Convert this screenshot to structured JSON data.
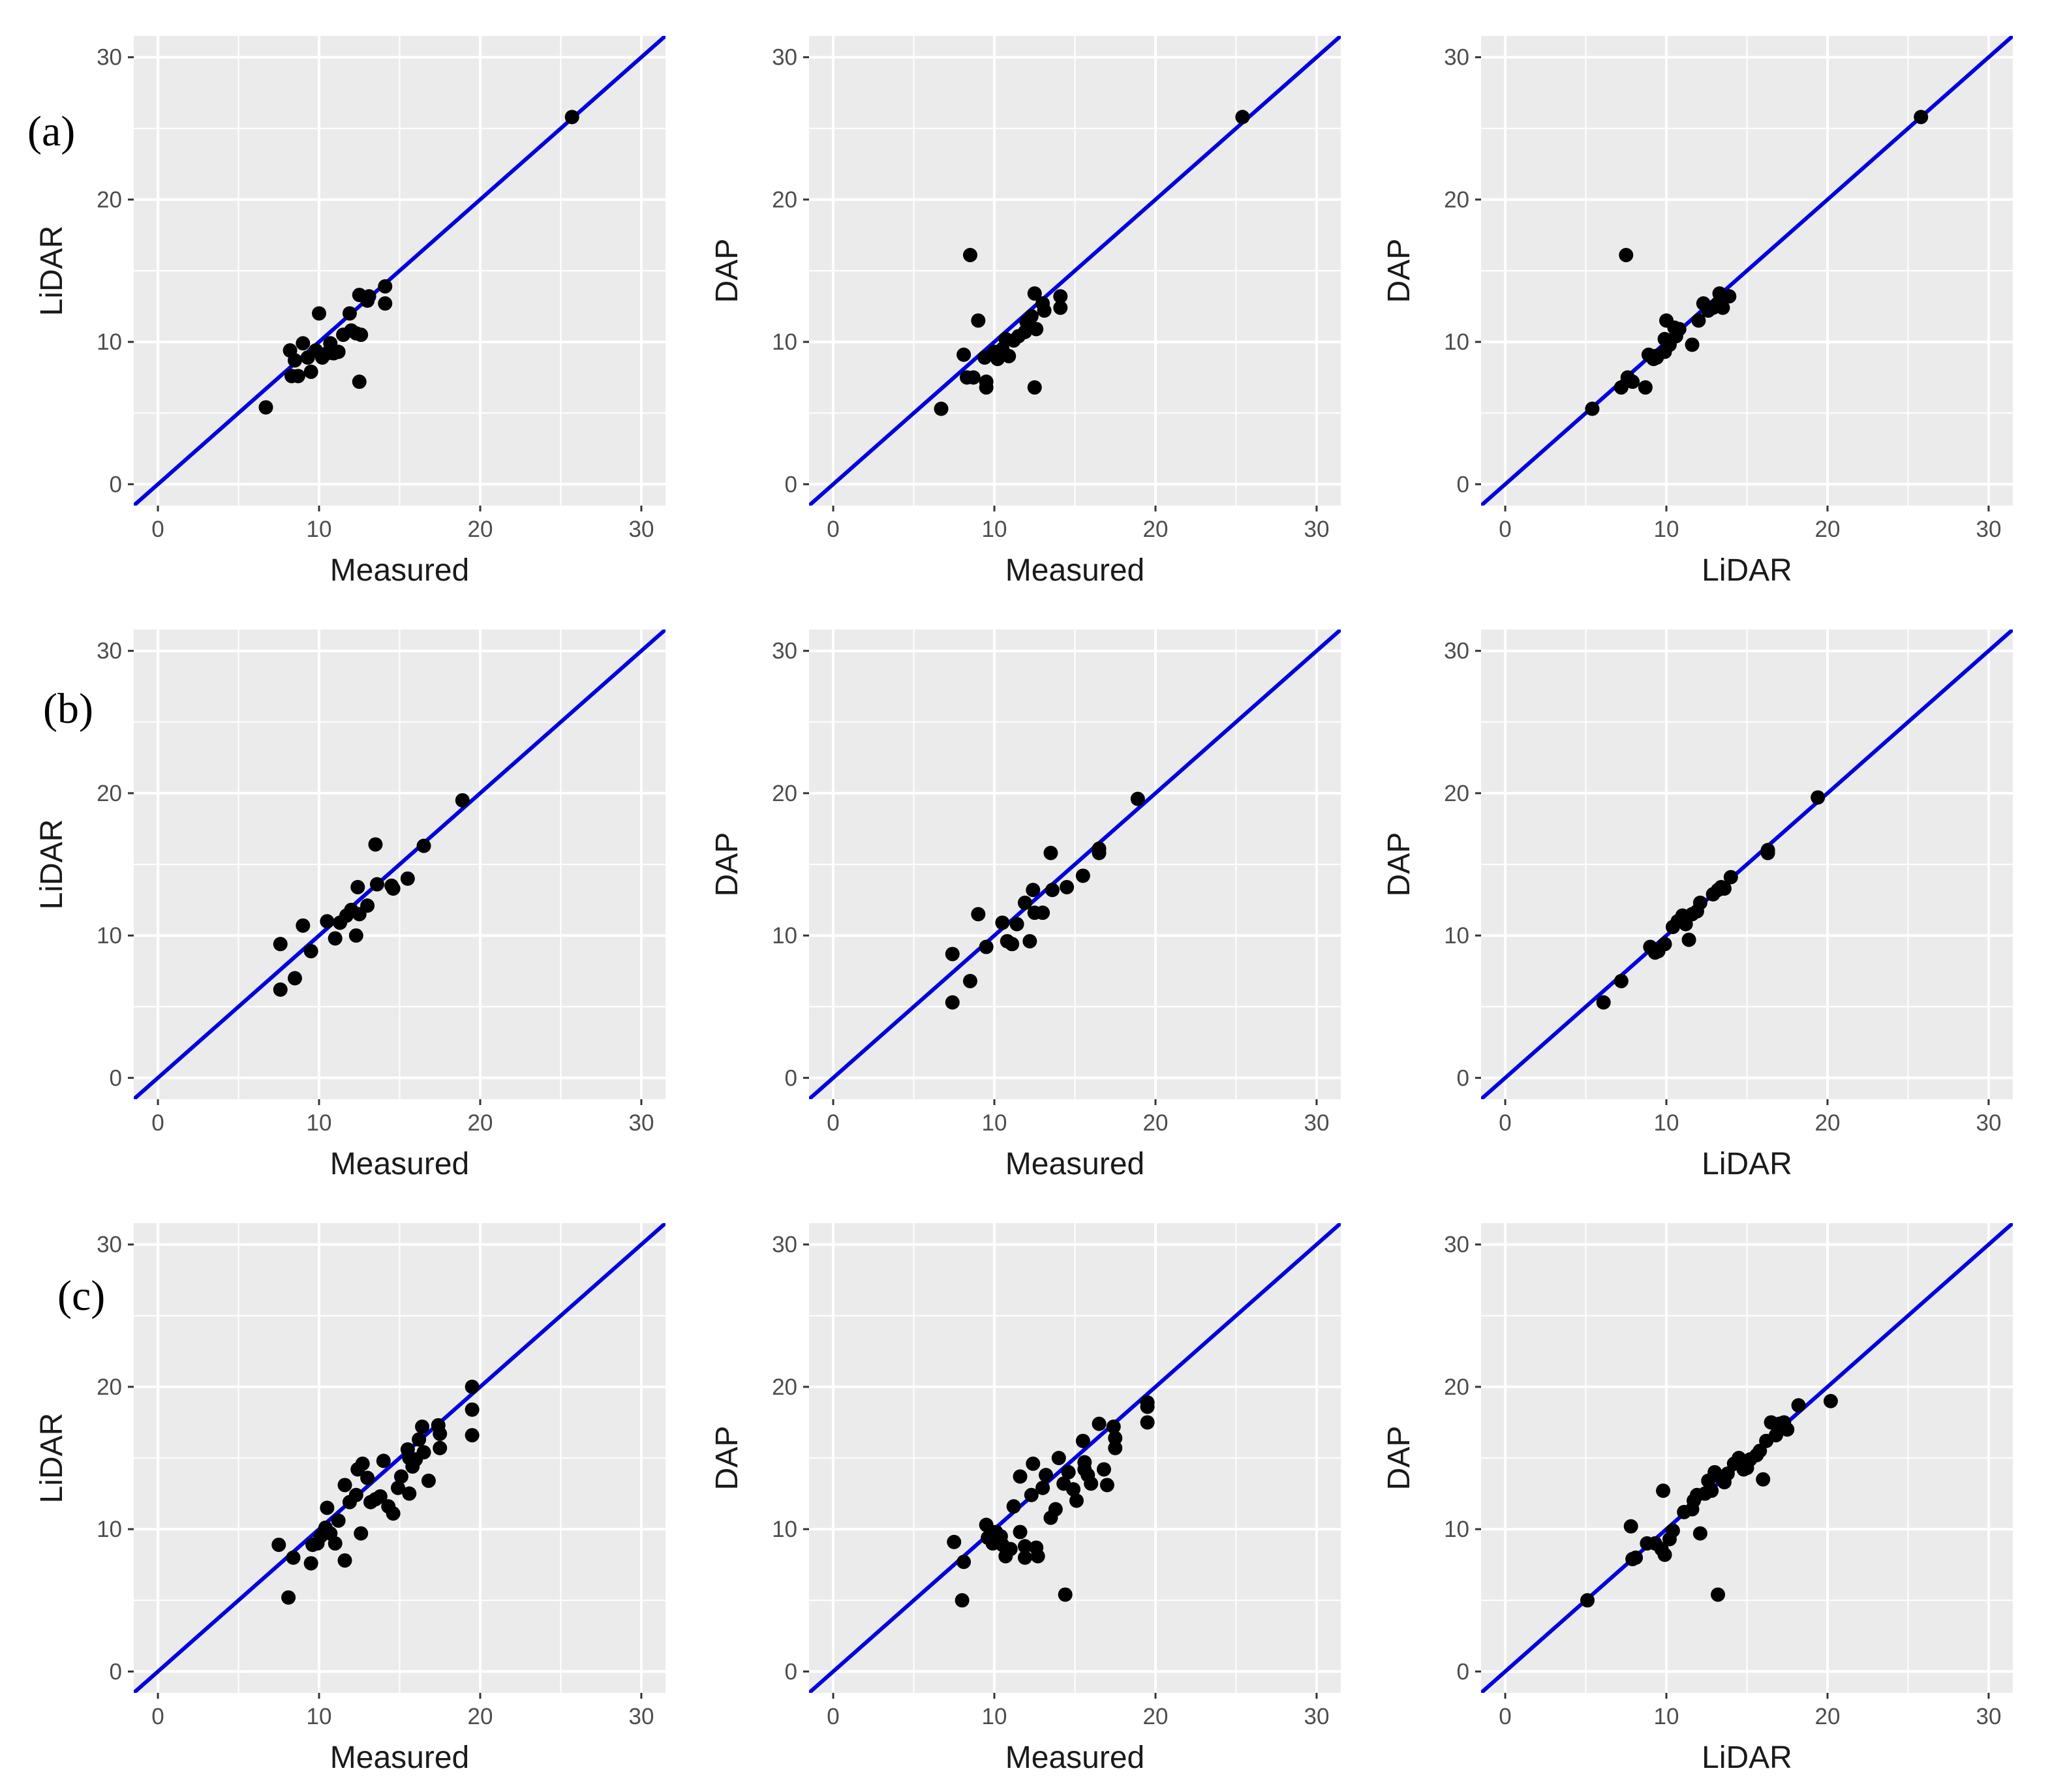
{
  "figure": {
    "row_labels": [
      "(a)",
      "(b)",
      "(c)"
    ],
    "colors": {
      "panel_bg": "#ebebeb",
      "grid": "#ffffff",
      "point": "#000000",
      "fit_line": "#0000dd"
    }
  },
  "chart_data": [
    {
      "id": "a-measured-lidar",
      "type": "scatter",
      "row": 0,
      "col": 0,
      "xlabel": "Measured",
      "ylabel": "LiDAR",
      "xlim": [
        -1.5,
        31.5
      ],
      "ylim": [
        -1.5,
        31.5
      ],
      "xticks": [
        0,
        10,
        20,
        30
      ],
      "yticks": [
        0,
        10,
        20,
        30
      ],
      "fit_line": {
        "slope": 1.0,
        "intercept": 0.0
      },
      "points": [
        [
          6.7,
          5.4
        ],
        [
          8.2,
          9.4
        ],
        [
          8.3,
          7.6
        ],
        [
          8.5,
          8.7
        ],
        [
          8.7,
          7.6
        ],
        [
          9.0,
          9.9
        ],
        [
          9.3,
          8.9
        ],
        [
          9.5,
          7.9
        ],
        [
          9.8,
          9.4
        ],
        [
          10.0,
          12.0
        ],
        [
          10.2,
          8.9
        ],
        [
          10.5,
          9.2
        ],
        [
          10.7,
          9.9
        ],
        [
          10.9,
          9.2
        ],
        [
          11.2,
          9.3
        ],
        [
          11.5,
          10.5
        ],
        [
          11.9,
          12.0
        ],
        [
          12.0,
          10.8
        ],
        [
          12.3,
          10.6
        ],
        [
          12.5,
          13.3
        ],
        [
          12.5,
          7.2
        ],
        [
          12.6,
          10.5
        ],
        [
          13.0,
          12.9
        ],
        [
          13.1,
          13.2
        ],
        [
          14.1,
          13.9
        ],
        [
          14.1,
          12.7
        ],
        [
          25.7,
          25.8
        ]
      ]
    },
    {
      "id": "a-measured-dap",
      "type": "scatter",
      "row": 0,
      "col": 1,
      "xlabel": "Measured",
      "ylabel": "DAP",
      "xlim": [
        -1.5,
        31.5
      ],
      "ylim": [
        -1.5,
        31.5
      ],
      "xticks": [
        0,
        10,
        20,
        30
      ],
      "yticks": [
        0,
        10,
        20,
        30
      ],
      "fit_line": {
        "slope": 1.0,
        "intercept": 0.0
      },
      "points": [
        [
          6.7,
          5.3
        ],
        [
          8.1,
          9.1
        ],
        [
          8.3,
          7.5
        ],
        [
          8.5,
          16.1
        ],
        [
          8.7,
          7.5
        ],
        [
          9.0,
          11.5
        ],
        [
          9.4,
          8.9
        ],
        [
          9.5,
          7.2
        ],
        [
          9.5,
          6.8
        ],
        [
          10.0,
          9.3
        ],
        [
          10.2,
          8.8
        ],
        [
          10.5,
          9.5
        ],
        [
          10.7,
          10.2
        ],
        [
          10.9,
          9.0
        ],
        [
          11.2,
          10.1
        ],
        [
          11.5,
          10.4
        ],
        [
          11.9,
          10.7
        ],
        [
          12.0,
          11.4
        ],
        [
          12.3,
          11.8
        ],
        [
          12.5,
          13.4
        ],
        [
          12.5,
          6.8
        ],
        [
          12.6,
          10.9
        ],
        [
          13.0,
          12.7
        ],
        [
          13.1,
          12.2
        ],
        [
          14.1,
          13.2
        ],
        [
          14.1,
          12.4
        ],
        [
          25.4,
          25.8
        ]
      ]
    },
    {
      "id": "a-lidar-dap",
      "type": "scatter",
      "row": 0,
      "col": 2,
      "xlabel": "LiDAR",
      "ylabel": "DAP",
      "xlim": [
        -1.5,
        31.5
      ],
      "ylim": [
        -1.5,
        31.5
      ],
      "xticks": [
        0,
        10,
        20,
        30
      ],
      "yticks": [
        0,
        10,
        20,
        30
      ],
      "fit_line": {
        "slope": 1.0,
        "intercept": 0.0
      },
      "points": [
        [
          5.4,
          5.3
        ],
        [
          7.2,
          6.8
        ],
        [
          7.5,
          16.1
        ],
        [
          7.6,
          7.5
        ],
        [
          7.9,
          7.2
        ],
        [
          8.7,
          6.8
        ],
        [
          8.9,
          9.1
        ],
        [
          9.2,
          8.8
        ],
        [
          9.3,
          9.0
        ],
        [
          9.4,
          8.9
        ],
        [
          9.9,
          9.3
        ],
        [
          9.9,
          10.2
        ],
        [
          10.0,
          11.5
        ],
        [
          10.2,
          9.8
        ],
        [
          10.5,
          11.0
        ],
        [
          10.6,
          10.4
        ],
        [
          10.8,
          10.9
        ],
        [
          11.6,
          9.8
        ],
        [
          12.0,
          11.5
        ],
        [
          12.3,
          12.7
        ],
        [
          12.6,
          12.2
        ],
        [
          12.9,
          12.4
        ],
        [
          13.2,
          12.7
        ],
        [
          13.3,
          13.4
        ],
        [
          13.5,
          12.4
        ],
        [
          13.9,
          13.2
        ],
        [
          25.8,
          25.8
        ]
      ]
    },
    {
      "id": "b-measured-lidar",
      "type": "scatter",
      "row": 1,
      "col": 0,
      "xlabel": "Measured",
      "ylabel": "LiDAR",
      "xlim": [
        -1.5,
        31.5
      ],
      "ylim": [
        -1.5,
        31.5
      ],
      "xticks": [
        0,
        10,
        20,
        30
      ],
      "yticks": [
        0,
        10,
        20,
        30
      ],
      "fit_line": {
        "slope": 1.0,
        "intercept": 0.0
      },
      "points": [
        [
          7.6,
          9.4
        ],
        [
          7.6,
          6.2
        ],
        [
          8.5,
          7.0
        ],
        [
          9.0,
          10.7
        ],
        [
          9.5,
          8.9
        ],
        [
          10.5,
          11.0
        ],
        [
          11.0,
          9.8
        ],
        [
          11.3,
          10.9
        ],
        [
          11.7,
          11.4
        ],
        [
          12.0,
          11.8
        ],
        [
          12.3,
          10.0
        ],
        [
          12.4,
          13.4
        ],
        [
          12.5,
          11.5
        ],
        [
          13.0,
          12.1
        ],
        [
          13.5,
          16.4
        ],
        [
          13.6,
          13.6
        ],
        [
          14.5,
          13.5
        ],
        [
          14.6,
          13.3
        ],
        [
          15.5,
          14.0
        ],
        [
          16.5,
          16.3
        ],
        [
          18.9,
          19.5
        ]
      ]
    },
    {
      "id": "b-measured-dap",
      "type": "scatter",
      "row": 1,
      "col": 1,
      "xlabel": "Measured",
      "ylabel": "DAP",
      "xlim": [
        -1.5,
        31.5
      ],
      "ylim": [
        -1.5,
        31.5
      ],
      "xticks": [
        0,
        10,
        20,
        30
      ],
      "yticks": [
        0,
        10,
        20,
        30
      ],
      "fit_line": {
        "slope": 1.0,
        "intercept": 0.0
      },
      "points": [
        [
          7.4,
          8.7
        ],
        [
          7.4,
          5.3
        ],
        [
          8.5,
          6.8
        ],
        [
          9.0,
          11.5
        ],
        [
          9.5,
          9.2
        ],
        [
          10.5,
          10.9
        ],
        [
          10.8,
          9.6
        ],
        [
          11.1,
          9.4
        ],
        [
          11.4,
          10.8
        ],
        [
          11.9,
          12.3
        ],
        [
          12.2,
          9.6
        ],
        [
          12.4,
          13.2
        ],
        [
          12.5,
          11.6
        ],
        [
          13.0,
          11.6
        ],
        [
          13.5,
          15.8
        ],
        [
          13.6,
          13.2
        ],
        [
          14.5,
          13.4
        ],
        [
          15.5,
          14.2
        ],
        [
          16.5,
          16.1
        ],
        [
          16.5,
          15.8
        ],
        [
          18.9,
          19.6
        ]
      ]
    },
    {
      "id": "b-lidar-dap",
      "type": "scatter",
      "row": 1,
      "col": 2,
      "xlabel": "LiDAR",
      "ylabel": "DAP",
      "xlim": [
        -1.5,
        31.5
      ],
      "ylim": [
        -1.5,
        31.5
      ],
      "xticks": [
        0,
        10,
        20,
        30
      ],
      "yticks": [
        0,
        10,
        20,
        30
      ],
      "fit_line": {
        "slope": 1.0,
        "intercept": 0.0
      },
      "points": [
        [
          6.1,
          5.3
        ],
        [
          7.2,
          6.8
        ],
        [
          9.0,
          9.2
        ],
        [
          9.3,
          8.8
        ],
        [
          9.5,
          8.9
        ],
        [
          9.9,
          9.4
        ],
        [
          10.4,
          10.6
        ],
        [
          10.7,
          11.0
        ],
        [
          11.0,
          11.4
        ],
        [
          11.2,
          10.8
        ],
        [
          11.4,
          9.7
        ],
        [
          11.6,
          11.5
        ],
        [
          11.9,
          11.7
        ],
        [
          12.1,
          12.3
        ],
        [
          12.9,
          12.9
        ],
        [
          13.2,
          13.2
        ],
        [
          13.4,
          13.4
        ],
        [
          13.6,
          13.3
        ],
        [
          14.0,
          14.1
        ],
        [
          16.3,
          16.0
        ],
        [
          16.3,
          15.8
        ],
        [
          19.4,
          19.7
        ]
      ]
    },
    {
      "id": "c-measured-lidar",
      "type": "scatter",
      "row": 2,
      "col": 0,
      "xlabel": "Measured",
      "ylabel": "LiDAR",
      "xlim": [
        -1.5,
        31.5
      ],
      "ylim": [
        -1.5,
        31.5
      ],
      "xticks": [
        0,
        10,
        20,
        30
      ],
      "yticks": [
        0,
        10,
        20,
        30
      ],
      "fit_line": {
        "slope": 1.0,
        "intercept": 0.0
      },
      "points": [
        [
          7.5,
          8.9
        ],
        [
          8.1,
          5.2
        ],
        [
          8.4,
          8.0
        ],
        [
          9.5,
          7.6
        ],
        [
          9.6,
          8.9
        ],
        [
          9.9,
          9.0
        ],
        [
          10.1,
          9.5
        ],
        [
          10.4,
          10.1
        ],
        [
          10.5,
          11.5
        ],
        [
          10.7,
          9.7
        ],
        [
          11.0,
          9.0
        ],
        [
          11.2,
          10.6
        ],
        [
          11.6,
          7.8
        ],
        [
          11.6,
          13.1
        ],
        [
          11.9,
          11.9
        ],
        [
          12.3,
          12.4
        ],
        [
          12.4,
          14.2
        ],
        [
          12.6,
          9.7
        ],
        [
          12.7,
          14.6
        ],
        [
          13.0,
          13.6
        ],
        [
          13.2,
          11.9
        ],
        [
          13.5,
          12.1
        ],
        [
          13.8,
          12.3
        ],
        [
          14.0,
          14.8
        ],
        [
          14.3,
          11.6
        ],
        [
          14.6,
          11.1
        ],
        [
          14.9,
          12.9
        ],
        [
          15.1,
          13.7
        ],
        [
          15.5,
          15.6
        ],
        [
          15.6,
          12.5
        ],
        [
          15.6,
          15.0
        ],
        [
          15.8,
          14.4
        ],
        [
          16.0,
          14.9
        ],
        [
          16.2,
          16.3
        ],
        [
          16.4,
          17.2
        ],
        [
          16.5,
          15.4
        ],
        [
          16.8,
          13.4
        ],
        [
          17.4,
          17.3
        ],
        [
          17.5,
          16.7
        ],
        [
          17.5,
          15.7
        ],
        [
          19.5,
          20.0
        ],
        [
          19.5,
          18.4
        ],
        [
          19.5,
          16.6
        ]
      ]
    },
    {
      "id": "c-measured-dap",
      "type": "scatter",
      "row": 2,
      "col": 1,
      "xlabel": "Measured",
      "ylabel": "DAP",
      "xlim": [
        -1.5,
        31.5
      ],
      "ylim": [
        -1.5,
        31.5
      ],
      "xticks": [
        0,
        10,
        20,
        30
      ],
      "yticks": [
        0,
        10,
        20,
        30
      ],
      "fit_line": {
        "slope": 1.0,
        "intercept": 0.0
      },
      "points": [
        [
          7.5,
          9.1
        ],
        [
          8.0,
          5.0
        ],
        [
          8.1,
          7.7
        ],
        [
          9.5,
          10.3
        ],
        [
          9.6,
          9.4
        ],
        [
          9.9,
          9.0
        ],
        [
          10.1,
          9.8
        ],
        [
          10.4,
          9.5
        ],
        [
          10.5,
          8.9
        ],
        [
          10.7,
          8.1
        ],
        [
          11.0,
          8.6
        ],
        [
          11.2,
          11.6
        ],
        [
          11.6,
          9.8
        ],
        [
          11.6,
          13.7
        ],
        [
          11.9,
          8.8
        ],
        [
          11.9,
          8.0
        ],
        [
          12.3,
          12.4
        ],
        [
          12.4,
          14.6
        ],
        [
          12.6,
          8.7
        ],
        [
          12.7,
          8.1
        ],
        [
          13.0,
          12.9
        ],
        [
          13.2,
          13.8
        ],
        [
          13.5,
          10.8
        ],
        [
          13.8,
          11.4
        ],
        [
          14.0,
          15.0
        ],
        [
          14.3,
          13.2
        ],
        [
          14.4,
          5.4
        ],
        [
          14.6,
          14.0
        ],
        [
          14.9,
          12.8
        ],
        [
          15.1,
          12.0
        ],
        [
          15.5,
          16.2
        ],
        [
          15.6,
          14.7
        ],
        [
          15.6,
          14.2
        ],
        [
          15.8,
          13.8
        ],
        [
          16.0,
          13.2
        ],
        [
          16.5,
          17.4
        ],
        [
          16.8,
          14.2
        ],
        [
          17.0,
          13.1
        ],
        [
          17.4,
          17.2
        ],
        [
          17.5,
          16.4
        ],
        [
          17.5,
          15.7
        ],
        [
          19.5,
          18.9
        ],
        [
          19.5,
          18.6
        ],
        [
          19.5,
          17.5
        ]
      ]
    },
    {
      "id": "c-lidar-dap",
      "type": "scatter",
      "row": 2,
      "col": 2,
      "xlabel": "LiDAR",
      "ylabel": "DAP",
      "xlim": [
        -1.5,
        31.5
      ],
      "ylim": [
        -1.5,
        31.5
      ],
      "xticks": [
        0,
        10,
        20,
        30
      ],
      "yticks": [
        0,
        10,
        20,
        30
      ],
      "fit_line": {
        "slope": 1.0,
        "intercept": 0.0
      },
      "points": [
        [
          5.1,
          5.0
        ],
        [
          7.8,
          10.2
        ],
        [
          7.9,
          7.9
        ],
        [
          8.1,
          8.0
        ],
        [
          8.8,
          9.0
        ],
        [
          9.3,
          9.0
        ],
        [
          9.7,
          8.6
        ],
        [
          9.8,
          12.7
        ],
        [
          9.9,
          8.2
        ],
        [
          10.2,
          9.3
        ],
        [
          10.4,
          9.9
        ],
        [
          11.1,
          11.2
        ],
        [
          11.6,
          11.4
        ],
        [
          11.7,
          12.0
        ],
        [
          11.9,
          12.4
        ],
        [
          12.1,
          9.7
        ],
        [
          12.4,
          12.5
        ],
        [
          12.6,
          13.4
        ],
        [
          12.8,
          12.7
        ],
        [
          13.0,
          14.0
        ],
        [
          13.2,
          5.4
        ],
        [
          13.4,
          13.6
        ],
        [
          13.6,
          13.3
        ],
        [
          13.8,
          13.9
        ],
        [
          14.2,
          14.6
        ],
        [
          14.5,
          15.0
        ],
        [
          14.8,
          14.2
        ],
        [
          15.0,
          14.3
        ],
        [
          15.2,
          14.9
        ],
        [
          15.6,
          15.2
        ],
        [
          15.8,
          15.5
        ],
        [
          16.0,
          13.5
        ],
        [
          16.2,
          16.2
        ],
        [
          16.5,
          17.5
        ],
        [
          16.8,
          16.6
        ],
        [
          17.0,
          17.4
        ],
        [
          17.3,
          17.5
        ],
        [
          17.5,
          17.0
        ],
        [
          18.2,
          18.7
        ],
        [
          20.2,
          19.0
        ]
      ]
    }
  ]
}
